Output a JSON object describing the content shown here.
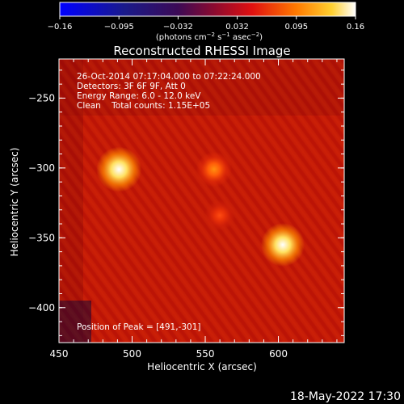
{
  "chart_data": {
    "type": "heatmap",
    "title": "Reconstructed RHESSI Image",
    "xlabel": "Heliocentric X (arcsec)",
    "ylabel": "Heliocentric Y (arcsec)",
    "xlim": [
      450,
      645
    ],
    "ylim": [
      -425,
      -222
    ],
    "xticks": [
      450,
      500,
      550,
      600
    ],
    "yticks": [
      -250,
      -300,
      -350,
      -400
    ],
    "colorbar": {
      "range": [
        -0.16,
        0.16
      ],
      "ticks": [
        "−0.16",
        "−0.095",
        "−0.032",
        "0.032",
        "0.095",
        "0.16"
      ],
      "label_main": "(photons cm",
      "label_exp1": "−2",
      "label_mid": " s",
      "label_exp2": "−1",
      "label_tail": " asec",
      "label_exp3": "−2",
      "label_end": ")"
    },
    "annotations": {
      "time": "26-Oct-2014 07:17:04.000 to 07:22:24.000",
      "detectors": "Detectors: 3F 6F 9F, Att 0",
      "energy": "Energy Range: 6.0 - 12.0 keV",
      "clean": "Clean    Total counts: 1.15E+05",
      "peak": "Position of Peak = [491,-301]"
    },
    "sources": [
      {
        "x": 491,
        "y": -301,
        "intensity": 0.16
      },
      {
        "x": 556,
        "y": -301,
        "intensity": 0.1
      },
      {
        "x": 603,
        "y": -355,
        "intensity": 0.15
      },
      {
        "x": 560,
        "y": -334,
        "intensity": 0.07
      }
    ],
    "background_level": 0.06
  },
  "footer_date": "18-May-2022 17:30"
}
